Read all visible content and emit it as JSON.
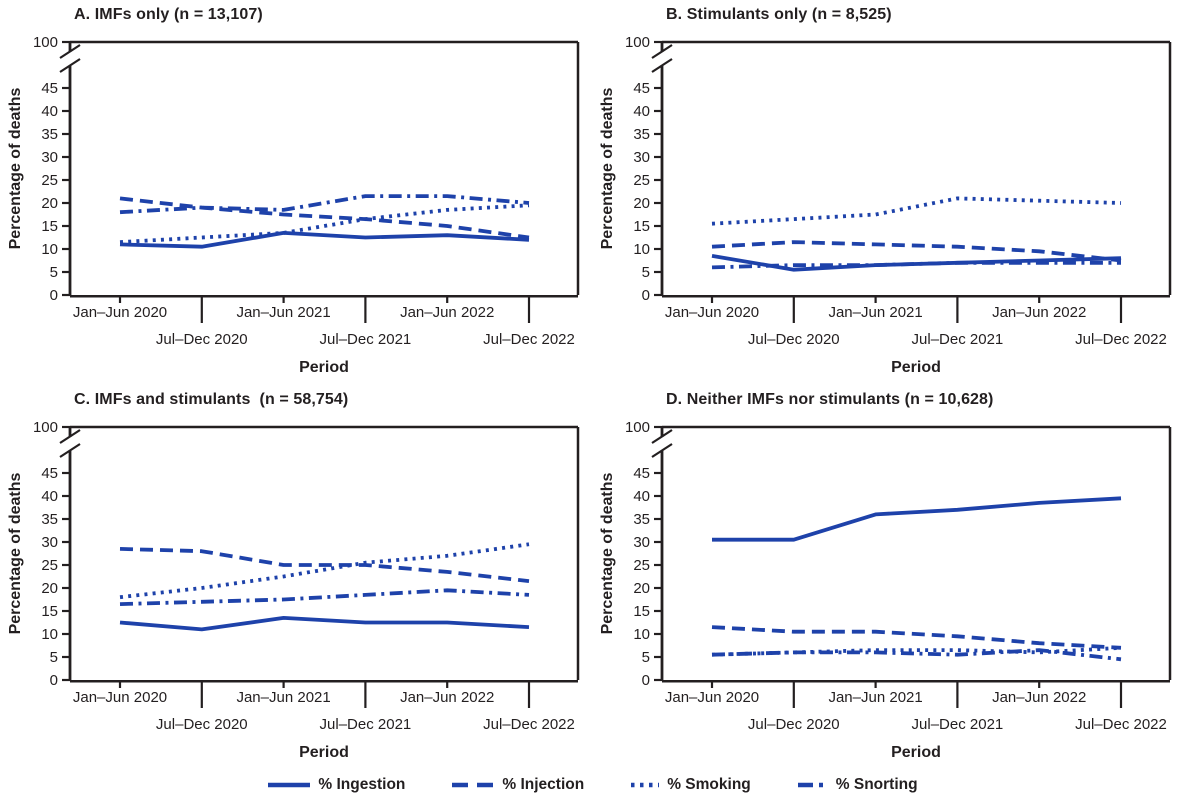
{
  "colors": {
    "line_blue": "#1e42aa",
    "axis_black": "#231f20",
    "background": "#ffffff"
  },
  "y_axis": {
    "label": "Percentage of deaths",
    "linear_ticks": [
      0,
      5,
      10,
      15,
      20,
      25,
      30,
      35,
      40,
      45
    ],
    "broken_top_tick": 100,
    "break_between": [
      47,
      100
    ]
  },
  "x_axis": {
    "label": "Period",
    "categories": [
      "Jan–Jun 2020",
      "Jul–Dec 2020",
      "Jan–Jun 2021",
      "Jul–Dec 2021",
      "Jan–Jun 2022",
      "Jul–Dec 2022"
    ]
  },
  "legend": {
    "items": [
      {
        "label": "% Ingestion",
        "style": "solid"
      },
      {
        "label": "% Injection",
        "style": "dashed"
      },
      {
        "label": "% Smoking",
        "style": "dotted"
      },
      {
        "label": "% Snorting",
        "style": "dashdot"
      }
    ]
  },
  "chart_data": [
    {
      "type": "line",
      "title": "A. IMFs only (n = 13,107)",
      "xlabel": "Period",
      "ylabel": "Percentage of deaths",
      "categories": [
        "Jan–Jun 2020",
        "Jul–Dec 2020",
        "Jan–Jun 2021",
        "Jul–Dec 2021",
        "Jan–Jun 2022",
        "Jul–Dec 2022"
      ],
      "ylim": [
        0,
        45
      ],
      "axis_break_to": 100,
      "series": [
        {
          "name": "% Ingestion",
          "style": "solid",
          "values": [
            11,
            10.5,
            13.5,
            12.5,
            13,
            12
          ]
        },
        {
          "name": "% Injection",
          "style": "dashed",
          "values": [
            21,
            19,
            17.5,
            16.5,
            15,
            12.5
          ]
        },
        {
          "name": "% Smoking",
          "style": "dotted",
          "values": [
            11.5,
            12.5,
            13.5,
            16.5,
            18.5,
            19.5
          ]
        },
        {
          "name": "% Snorting",
          "style": "dashdot",
          "values": [
            18,
            19,
            18.5,
            21.5,
            21.5,
            20
          ]
        }
      ]
    },
    {
      "type": "line",
      "title": "B. Stimulants only (n = 8,525)",
      "xlabel": "Period",
      "ylabel": "Percentage of deaths",
      "categories": [
        "Jan–Jun 2020",
        "Jul–Dec 2020",
        "Jan–Jun 2021",
        "Jul–Dec 2021",
        "Jan–Jun 2022",
        "Jul–Dec 2022"
      ],
      "ylim": [
        0,
        45
      ],
      "axis_break_to": 100,
      "series": [
        {
          "name": "% Ingestion",
          "style": "solid",
          "values": [
            8.5,
            5.5,
            6.5,
            7,
            7.5,
            8
          ]
        },
        {
          "name": "% Injection",
          "style": "dashed",
          "values": [
            10.5,
            11.5,
            11,
            10.5,
            9.5,
            7.5
          ]
        },
        {
          "name": "% Smoking",
          "style": "dotted",
          "values": [
            15.5,
            16.5,
            17.5,
            21,
            20.5,
            20
          ]
        },
        {
          "name": "% Snorting",
          "style": "dashdot",
          "values": [
            6,
            6.5,
            6.5,
            7,
            7,
            7
          ]
        }
      ]
    },
    {
      "type": "line",
      "title": "C. IMFs and stimulants  (n = 58,754)",
      "xlabel": "Period",
      "ylabel": "Percentage of deaths",
      "categories": [
        "Jan–Jun 2020",
        "Jul–Dec 2020",
        "Jan–Jun 2021",
        "Jul–Dec 2021",
        "Jan–Jun 2022",
        "Jul–Dec 2022"
      ],
      "ylim": [
        0,
        45
      ],
      "axis_break_to": 100,
      "series": [
        {
          "name": "% Ingestion",
          "style": "solid",
          "values": [
            12.5,
            11,
            13.5,
            12.5,
            12.5,
            11.5
          ]
        },
        {
          "name": "% Injection",
          "style": "dashed",
          "values": [
            28.5,
            28,
            25,
            25,
            23.5,
            21.5
          ]
        },
        {
          "name": "% Smoking",
          "style": "dotted",
          "values": [
            18,
            20,
            22.5,
            25.5,
            27,
            29.5
          ]
        },
        {
          "name": "% Snorting",
          "style": "dashdot",
          "values": [
            16.5,
            17,
            17.5,
            18.5,
            19.5,
            18.5
          ]
        }
      ]
    },
    {
      "type": "line",
      "title": "D. Neither IMFs nor stimulants (n = 10,628)",
      "xlabel": "Period",
      "ylabel": "Percentage of deaths",
      "categories": [
        "Jan–Jun 2020",
        "Jul–Dec 2020",
        "Jan–Jun 2021",
        "Jul–Dec 2021",
        "Jan–Jun 2022",
        "Jul–Dec 2022"
      ],
      "ylim": [
        0,
        45
      ],
      "axis_break_to": 100,
      "series": [
        {
          "name": "% Ingestion",
          "style": "solid",
          "values": [
            30.5,
            30.5,
            36,
            37,
            38.5,
            39.5
          ]
        },
        {
          "name": "% Injection",
          "style": "dashed",
          "values": [
            11.5,
            10.5,
            10.5,
            9.5,
            8,
            7
          ]
        },
        {
          "name": "% Smoking",
          "style": "dotted",
          "values": [
            5.5,
            6,
            6.5,
            6.5,
            6,
            7
          ]
        },
        {
          "name": "% Snorting",
          "style": "dashdot",
          "values": [
            5.5,
            6,
            6,
            5.5,
            6.5,
            4.5
          ]
        }
      ]
    }
  ]
}
